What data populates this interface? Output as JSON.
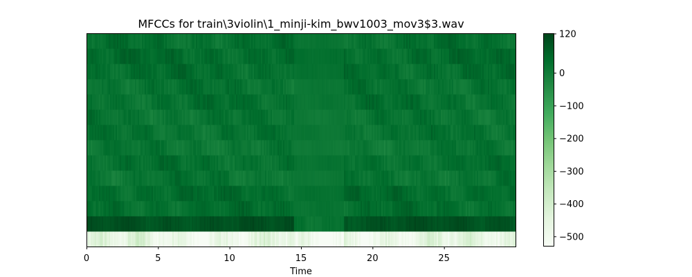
{
  "chart_data": {
    "type": "heatmap",
    "title": "MFCCs for train\\3violin\\1_minji-kim_bwv1003_mov3$3.wav",
    "xlabel": "Time",
    "ylabel": "",
    "xlim": [
      0,
      30
    ],
    "x_ticks": [
      "0",
      "5",
      "10",
      "15",
      "20",
      "25"
    ],
    "x_tick_values": [
      0,
      5,
      10,
      15,
      20,
      25
    ],
    "y_ticks_visible": false,
    "n_coefficients": 14,
    "colormap": "Greens",
    "colormap_stops": [
      "#f7fcf5",
      "#e5f5e0",
      "#c7e9c0",
      "#a1d99b",
      "#74c476",
      "#41ab5d",
      "#238b45",
      "#006d2c",
      "#00441b"
    ],
    "color_range": [
      -530,
      122
    ],
    "colorbar_ticks": [
      "120",
      "0",
      "−100",
      "−200",
      "−300",
      "−400",
      "−500"
    ],
    "colorbar_tick_values": [
      120,
      0,
      -100,
      -200,
      -300,
      -400,
      -500
    ],
    "coefficient_mean_values": [
      -470,
      95,
      35,
      40,
      20,
      30,
      15,
      25,
      20,
      30,
      25,
      35,
      40,
      30
    ],
    "quiet_segment_time": [
      14.5,
      18
    ]
  }
}
